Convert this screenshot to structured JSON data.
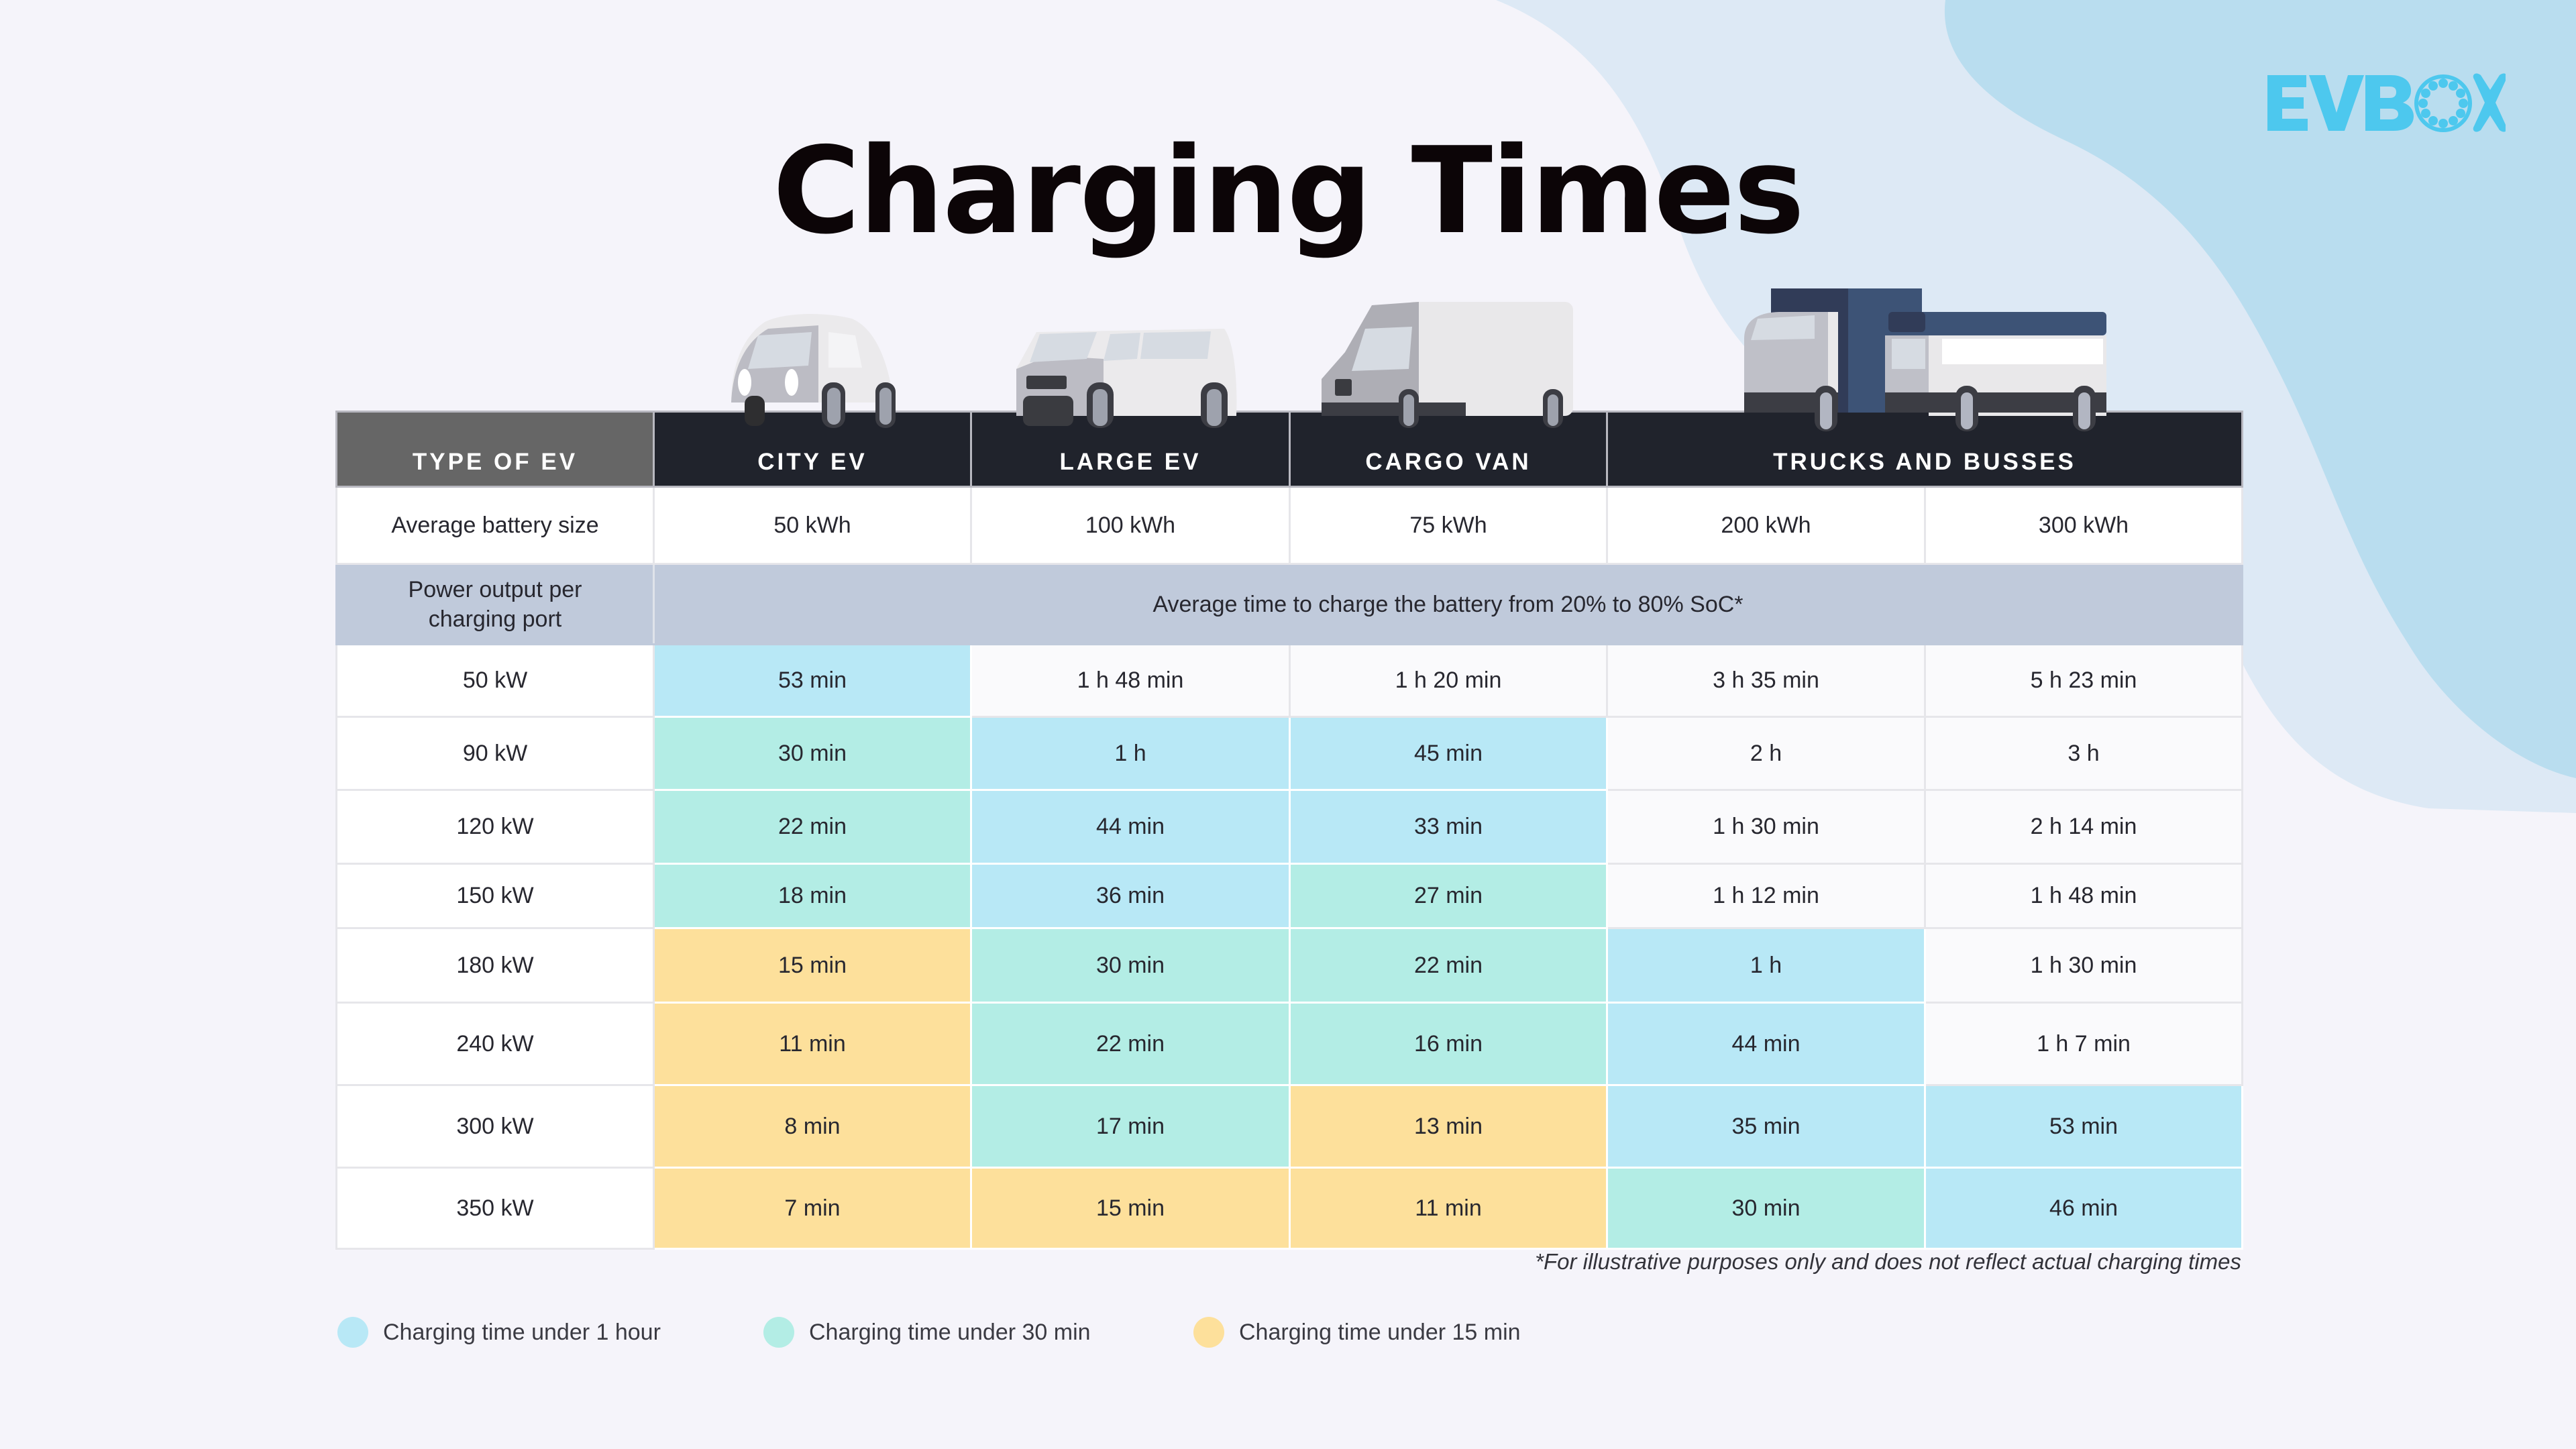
{
  "brand": {
    "logo_text": "EVBOX",
    "logo_color": "#4dc8ee"
  },
  "title": "Charging Times",
  "colors": {
    "header_dark": "#20232c",
    "header_label": "#666666",
    "subheader": "#c0cadb",
    "under_1_hour": "#b8e8f6",
    "under_30_min": "#b3ede5",
    "under_15_min": "#fde09b",
    "background": "#f5f4fa"
  },
  "table": {
    "headers": {
      "type": "TYPE OF EV",
      "city": "CITY EV",
      "large": "LARGE EV",
      "cargo": "CARGO VAN",
      "trucks": "TRUCKS AND BUSSES"
    },
    "battery_row": {
      "label": "Average battery size",
      "values": [
        "50 kWh",
        "100 kWh",
        "75 kWh",
        "200 kWh",
        "300 kWh"
      ]
    },
    "subheader": {
      "label": "Power output per charging port",
      "description": "Average time to charge the battery from 20% to 80% SoC*"
    },
    "rows": [
      {
        "power": "50 kW",
        "times": [
          "53 min",
          "1 h 48 min",
          "1 h 20 min",
          "3 h 35 min",
          "5 h 23 min"
        ],
        "cls": [
          "hour",
          "",
          "",
          "",
          ""
        ]
      },
      {
        "power": "90 kW",
        "times": [
          "30 min",
          "1 h",
          "45 min",
          "2 h",
          "3 h"
        ],
        "cls": [
          "30",
          "hour",
          "hour",
          "",
          ""
        ]
      },
      {
        "power": "120 kW",
        "times": [
          "22 min",
          "44 min",
          "33 min",
          "1 h 30 min",
          "2 h 14 min"
        ],
        "cls": [
          "30",
          "hour",
          "hour",
          "",
          ""
        ]
      },
      {
        "power": "150 kW",
        "times": [
          "18 min",
          "36 min",
          "27 min",
          "1 h 12 min",
          "1 h 48 min"
        ],
        "cls": [
          "30",
          "hour",
          "30",
          "",
          ""
        ]
      },
      {
        "power": "180 kW",
        "times": [
          "15 min",
          "30 min",
          "22 min",
          "1 h",
          "1 h 30 min"
        ],
        "cls": [
          "15",
          "30",
          "30",
          "hour",
          ""
        ]
      },
      {
        "power": "240 kW",
        "times": [
          "11 min",
          "22 min",
          "16 min",
          "44 min",
          "1 h 7 min"
        ],
        "cls": [
          "15",
          "30",
          "30",
          "hour",
          ""
        ]
      },
      {
        "power": "300 kW",
        "times": [
          "8 min",
          "17 min",
          "13 min",
          "35 min",
          "53 min"
        ],
        "cls": [
          "15",
          "30",
          "15",
          "hour",
          "hour"
        ]
      },
      {
        "power": "350 kW",
        "times": [
          "7 min",
          "15 min",
          "11 min",
          "30 min",
          "46 min"
        ],
        "cls": [
          "15",
          "15",
          "15",
          "30",
          "hour"
        ]
      }
    ]
  },
  "footnote": "*For illustrative purposes only and does not reflect actual charging times",
  "legend": [
    {
      "label": "Charging time under 1 hour",
      "color": "#b8e8f6"
    },
    {
      "label": "Charging time under 30 min",
      "color": "#b3ede5"
    },
    {
      "label": "Charging time under 15 min",
      "color": "#fde09b"
    }
  ],
  "vehicles": [
    {
      "name": "city-ev",
      "icon": "city-car-icon"
    },
    {
      "name": "large-ev",
      "icon": "suv-icon"
    },
    {
      "name": "cargo-van",
      "icon": "van-icon"
    },
    {
      "name": "trucks-and-busses",
      "icon": "truck-bus-icon"
    }
  ]
}
